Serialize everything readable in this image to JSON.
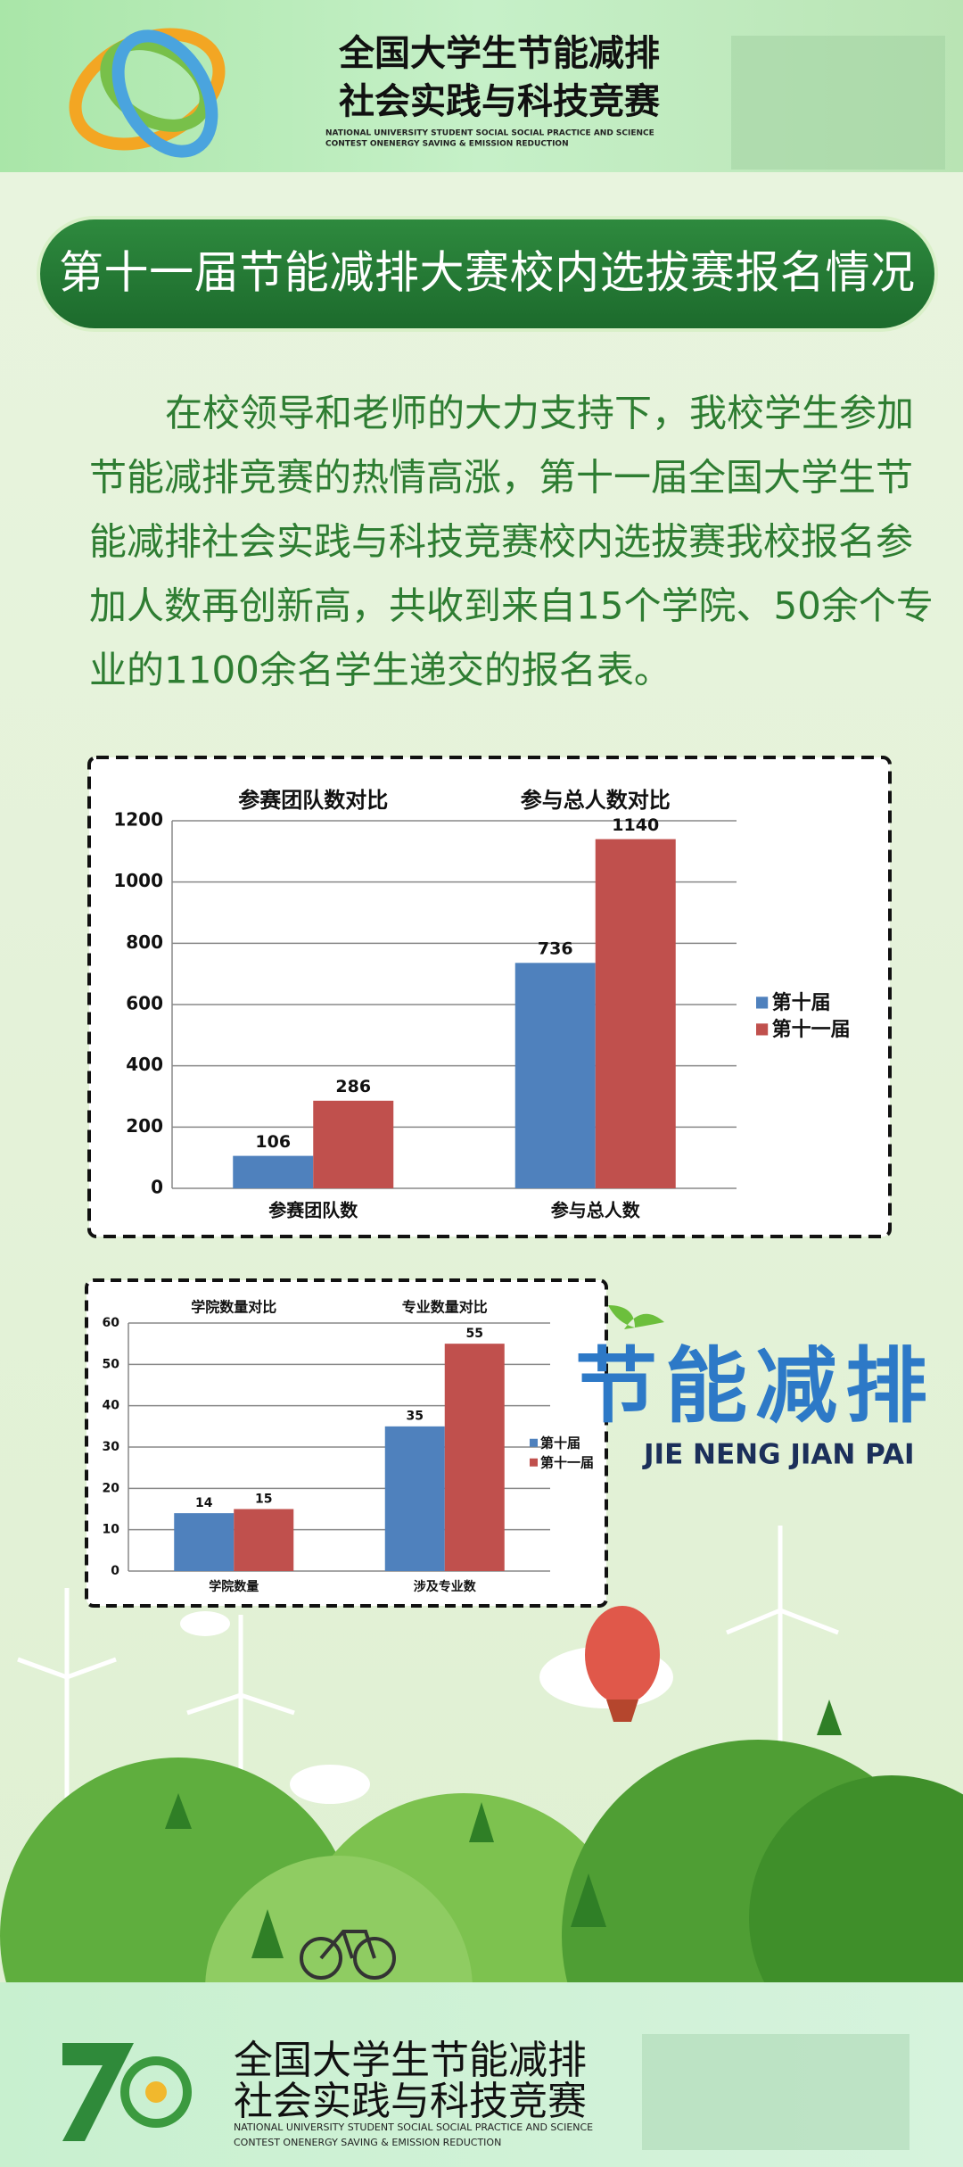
{
  "header": {
    "title_lines": [
      "全国大学生节能减排",
      "社会实践与科技竞赛"
    ],
    "english_lines": [
      "NATIONAL UNIVERSITY STUDENT SOCIAL SOCIAL PRACTICE AND SCIENCE",
      "CONTEST ONENERGY SAVING & EMISSION REDUCTION"
    ]
  },
  "banner": {
    "title": "第十一届节能减排大赛校内选拔赛报名情况"
  },
  "paragraph": {
    "lines": [
      "在校领导和老师的大力支持下，我校学生参加",
      "节能减排竞赛的热情高涨，第十一届全国大学生节",
      "能减排社会实践与科技竞赛校内选拔赛我校报名参",
      "加人数再创新高，共收到来自15个学院、50余个专",
      "业的1100余名学生递交的报名表。"
    ]
  },
  "chart_data": [
    {
      "type": "bar",
      "group_titles": [
        "参赛团队数对比",
        "参与总人数对比"
      ],
      "categories": [
        "参赛团队数",
        "参与总人数"
      ],
      "series": [
        {
          "name": "第十届",
          "color": "#4f81bd",
          "values": [
            106,
            736
          ]
        },
        {
          "name": "第十一届",
          "color": "#c0504d",
          "values": [
            286,
            1140
          ]
        }
      ],
      "ylim": [
        0,
        1200
      ],
      "yticks": [
        0,
        200,
        400,
        600,
        800,
        1000,
        1200
      ],
      "grid": true,
      "legend": "right"
    },
    {
      "type": "bar",
      "group_titles": [
        "学院数量对比",
        "专业数量对比"
      ],
      "categories": [
        "学院数量",
        "涉及专业数"
      ],
      "series": [
        {
          "name": "第十届",
          "color": "#4f81bd",
          "values": [
            14,
            35
          ]
        },
        {
          "name": "第十一届",
          "color": "#c0504d",
          "values": [
            15,
            55
          ]
        }
      ],
      "ylim": [
        0,
        60
      ],
      "yticks": [
        0,
        10,
        20,
        30,
        40,
        50,
        60
      ],
      "grid": true,
      "legend": "right"
    }
  ],
  "logo": {
    "title": "节能减排",
    "pinyin": "JIE NENG JIAN PAI"
  },
  "footer": {
    "title_lines": [
      "全国大学生节能减排",
      "社会实践与科技竞赛"
    ],
    "english_lines": [
      "NATIONAL UNIVERSITY STUDENT SOCIAL SOCIAL PRACTICE AND SCIENCE",
      "CONTEST ONENERGY SAVING & EMISSION REDUCTION"
    ]
  }
}
